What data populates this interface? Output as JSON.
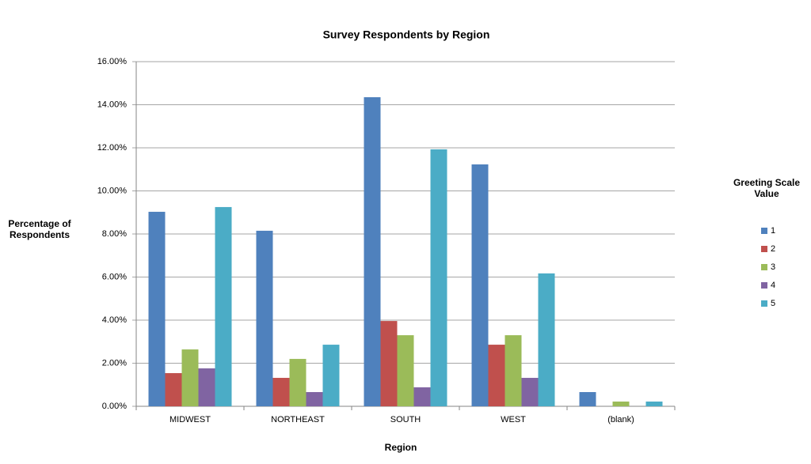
{
  "chart_data": {
    "type": "bar",
    "title": "Survey Respondents by Region",
    "x_label": "Region",
    "y_label": "Percentage of Respondents",
    "legend_title": "Greeting Scale Value",
    "legend_position": "right",
    "grid": true,
    "categories": [
      "MIDWEST",
      "NORTHEAST",
      "SOUTH",
      "WEST",
      "(blank)"
    ],
    "series": [
      {
        "name": "1",
        "color": "#4f81bd",
        "values": [
          9.03,
          8.15,
          14.35,
          11.23,
          0.66
        ]
      },
      {
        "name": "2",
        "color": "#c0504d",
        "values": [
          1.54,
          1.32,
          3.96,
          2.86,
          0
        ]
      },
      {
        "name": "3",
        "color": "#9bbb59",
        "values": [
          2.64,
          2.2,
          3.3,
          3.3,
          0.22
        ]
      },
      {
        "name": "4",
        "color": "#8064a2",
        "values": [
          1.76,
          0.66,
          0.88,
          1.32,
          0
        ]
      },
      {
        "name": "5",
        "color": "#4bacc6",
        "values": [
          9.25,
          2.86,
          11.93,
          6.17,
          0.22
        ]
      }
    ],
    "ylim": [
      0,
      16
    ],
    "yticks": [
      {
        "value": 0,
        "label": "0.00%"
      },
      {
        "value": 2,
        "label": "2.00%"
      },
      {
        "value": 4,
        "label": "4.00%"
      },
      {
        "value": 6,
        "label": "6.00%"
      },
      {
        "value": 8,
        "label": "8.00%"
      },
      {
        "value": 10,
        "label": "10.00%"
      },
      {
        "value": 12,
        "label": "12.00%"
      },
      {
        "value": 14,
        "label": "14.00%"
      },
      {
        "value": 16,
        "label": "16.00%"
      }
    ]
  }
}
